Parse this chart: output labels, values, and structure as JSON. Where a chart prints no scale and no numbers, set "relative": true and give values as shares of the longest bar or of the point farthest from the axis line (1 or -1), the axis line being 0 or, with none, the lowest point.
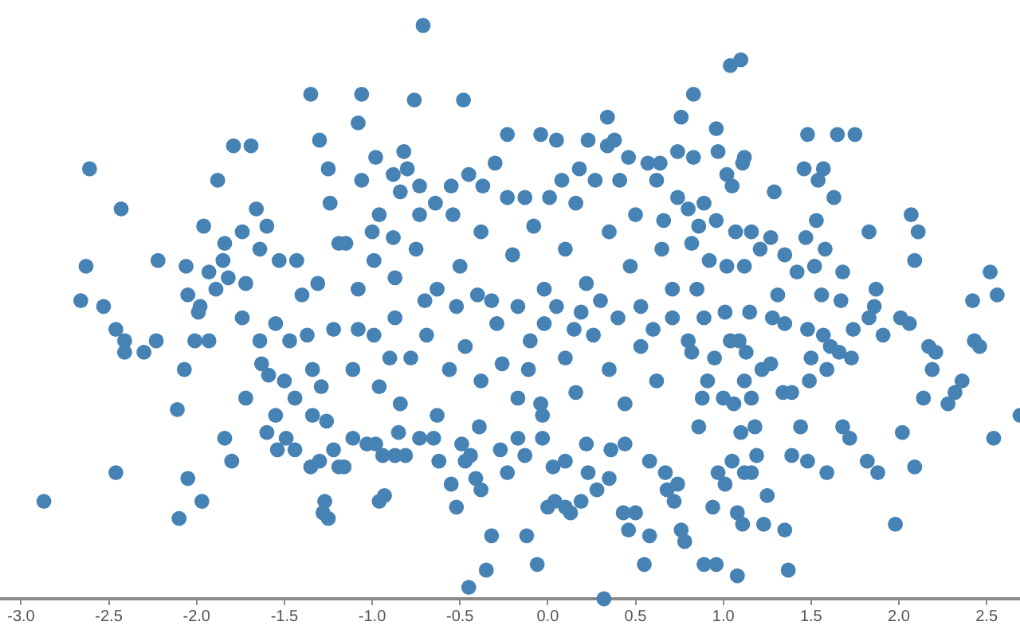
{
  "chart_data": {
    "type": "scatter",
    "color": "#4682b4",
    "marker": "circle",
    "relative": true,
    "xlim": [
      -3.12,
      2.69
    ],
    "xticks": [
      {
        "value": -3,
        "label": "-3.0"
      },
      -2.5,
      {
        "value": -2,
        "label": "-2.0"
      },
      -1.5,
      {
        "value": -1,
        "label": "-1.0"
      },
      -0.5,
      {
        "value": 0,
        "label": "0.0"
      },
      0.5,
      {
        "value": 1,
        "label": "1.0"
      },
      1.5,
      {
        "value": 2,
        "label": "2.0"
      },
      2.5
    ],
    "x": [
      -1.35,
      -1.3,
      -1.25,
      -1.24,
      -2.61,
      -2.43,
      -1.79,
      -1.69,
      -1.88,
      -1.96,
      -1.74,
      -1.66,
      -1.6,
      -1.84,
      -1.64,
      -2.63,
      -2.66,
      -2.53,
      -2.22,
      -2.06,
      -1.93,
      -1.85,
      -1.82,
      -1.89,
      -2.05,
      -1.98,
      -1.72,
      -1.53,
      -1.43,
      -1.31,
      -1.4,
      -1.19,
      -2.46,
      -2.41,
      -2.41,
      -2.3,
      -2.23,
      -2.07,
      -2.01,
      -1.93,
      -1.99,
      -2.11,
      -2.46,
      -2.87,
      -2.05,
      -1.97,
      -2.1,
      -1.84,
      -1.8,
      -1.72,
      -1.63,
      -1.59,
      -1.55,
      -1.6,
      -1.54,
      -1.49,
      -1.44,
      -1.5,
      -1.64,
      -1.74,
      -1.55,
      -1.44,
      -1.34,
      -1.26,
      -1.35,
      -1.3,
      -1.22,
      -1.27,
      -1.28,
      -1.25,
      -1.19,
      -1.29,
      -1.34,
      -1.37,
      -1.22,
      -1.47,
      -0.71,
      -1.06,
      -0.76,
      -0.48,
      -1.08,
      -0.23,
      -0.04,
      0.05,
      0.23,
      0.34,
      0.38,
      0.34,
      0.76,
      0.74,
      -0.98,
      -0.82,
      -0.3,
      0.46,
      0.57,
      0.64,
      -1.06,
      -0.88,
      -0.8,
      -0.45,
      0.08,
      0.18,
      0.27,
      -0.55,
      -0.73,
      -0.84,
      -0.37,
      -0.13,
      0.41,
      0.62,
      -0.96,
      -1.0,
      -0.88,
      -1.15,
      -0.73,
      -0.64,
      -0.54,
      -0.23,
      0.01,
      0.16,
      0.5,
      0.66,
      0.74,
      1.04,
      1.1,
      0.83,
      0.96,
      1.48,
      1.65,
      1.75,
      0.83,
      0.97,
      1.12,
      1.11,
      1.02,
      1.05,
      1.29,
      1.46,
      1.57,
      1.54,
      1.63,
      1.53,
      1.47,
      1.58,
      1.83,
      2.07,
      2.11,
      2.09,
      2.52,
      2.42,
      2.56,
      0.8,
      0.89,
      0.86,
      0.96,
      1.07,
      1.16,
      1.27,
      1.21,
      1.35,
      1.42,
      1.52,
      1.68,
      1.87,
      0.92,
      1.02,
      1.12,
      0.82,
      1.31,
      1.56,
      1.67,
      2.69,
      2.54,
      2.43,
      2.46,
      2.36,
      2.32,
      2.28,
      2.17,
      2.21,
      2.19,
      2.14,
      2.01,
      2.06,
      1.91,
      2.02,
      2.09,
      1.98,
      1.88,
      1.82,
      1.72,
      1.68,
      1.59,
      1.48,
      1.39,
      1.44,
      1.37,
      1.35,
      1.23,
      1.25,
      1.08,
      0.96,
      0.89,
      0.94,
      1.08,
      1.11,
      0.78,
      1.01,
      0.97,
      1.05,
      1.16,
      1.12,
      1.19,
      1.1,
      1.18,
      1.34,
      1.39,
      1.49,
      1.28,
      1.35,
      1.48,
      1.57,
      1.61,
      1.74,
      1.86,
      1.83,
      1.5,
      1.59,
      1.66,
      1.73,
      1.22,
      1.27,
      1.12,
      1.16,
      1.06,
      1.0,
      0.88,
      0.86,
      0.91,
      0.95,
      1.04,
      1.09,
      1.13,
      0.82,
      0.89,
      1.01,
      1.15,
      -0.45,
      -0.35,
      -0.32,
      -0.12,
      -0.06,
      0.32,
      0.55,
      0.46,
      0.58,
      0.43,
      0.5,
      0.76,
      -0.52,
      -0.55,
      -0.38,
      -0.41,
      -0.23,
      -0.96,
      -0.93,
      0.0,
      0.04,
      0.1,
      0.13,
      0.19,
      0.28,
      0.23,
      0.35,
      0.03,
      0.1,
      -0.62,
      -0.47,
      -0.44,
      -0.94,
      -0.87,
      -0.81,
      -1.16,
      -1.11,
      -1.03,
      -0.98,
      -0.85,
      -0.73,
      -0.65,
      -0.49,
      -0.39,
      -0.27,
      -0.17,
      -0.13,
      -0.03,
      -0.03,
      -0.04,
      0.22,
      0.36,
      0.44,
      0.58,
      0.67,
      0.68,
      0.74,
      0.72,
      -1.08,
      -0.99,
      -0.87,
      -0.78,
      -0.69,
      -0.56,
      -0.47,
      -0.38,
      -0.29,
      -0.26,
      -0.17,
      -0.11,
      -0.02,
      0.1,
      0.16,
      0.26,
      0.35,
      0.44,
      0.53,
      0.62,
      0.71,
      -1.11,
      -0.96,
      -0.84,
      -0.63,
      -0.52,
      0.19,
      -0.99,
      -0.87,
      -0.75,
      -0.63,
      -0.5,
      -0.38,
      -0.32,
      -0.2,
      -0.08,
      -0.02,
      0.1,
      0.22,
      0.35,
      0.47,
      0.65,
      0.71,
      -1.08,
      -0.17,
      0.53,
      0.85,
      0.05,
      0.15,
      0.3,
      -0.1,
      0.4,
      -0.4,
      -0.7,
      -0.9,
      0.6,
      0.8
    ],
    "values": [
      0.88,
      0.8,
      0.75,
      0.69,
      0.75,
      0.68,
      0.79,
      0.79,
      0.73,
      0.65,
      0.64,
      0.68,
      0.65,
      0.62,
      0.61,
      0.58,
      0.52,
      0.51,
      0.59,
      0.58,
      0.57,
      0.59,
      0.56,
      0.54,
      0.53,
      0.51,
      0.55,
      0.59,
      0.59,
      0.55,
      0.53,
      0.62,
      0.47,
      0.45,
      0.43,
      0.43,
      0.45,
      0.4,
      0.45,
      0.45,
      0.5,
      0.33,
      0.22,
      0.17,
      0.21,
      0.17,
      0.14,
      0.28,
      0.24,
      0.35,
      0.41,
      0.39,
      0.32,
      0.29,
      0.26,
      0.28,
      0.26,
      0.38,
      0.45,
      0.49,
      0.48,
      0.35,
      0.32,
      0.31,
      0.23,
      0.24,
      0.26,
      0.17,
      0.15,
      0.14,
      0.23,
      0.37,
      0.4,
      0.46,
      0.47,
      0.45,
      1,
      0.88,
      0.87,
      0.87,
      0.83,
      0.81,
      0.81,
      0.8,
      0.8,
      0.84,
      0.8,
      0.79,
      0.84,
      0.78,
      0.77,
      0.78,
      0.76,
      0.77,
      0.76,
      0.76,
      0.73,
      0.74,
      0.75,
      0.74,
      0.73,
      0.75,
      0.73,
      0.72,
      0.72,
      0.71,
      0.72,
      0.7,
      0.73,
      0.73,
      0.67,
      0.64,
      0.63,
      0.62,
      0.67,
      0.69,
      0.67,
      0.7,
      0.7,
      0.69,
      0.67,
      0.66,
      0.7,
      0.93,
      0.94,
      0.88,
      0.82,
      0.81,
      0.81,
      0.81,
      0.77,
      0.78,
      0.77,
      0.76,
      0.74,
      0.72,
      0.71,
      0.75,
      0.75,
      0.73,
      0.7,
      0.66,
      0.63,
      0.61,
      0.64,
      0.67,
      0.64,
      0.59,
      0.57,
      0.52,
      0.53,
      0.68,
      0.69,
      0.65,
      0.66,
      0.64,
      0.64,
      0.63,
      0.61,
      0.6,
      0.57,
      0.58,
      0.57,
      0.54,
      0.59,
      0.58,
      0.58,
      0.62,
      0.53,
      0.53,
      0.52,
      0.32,
      0.28,
      0.45,
      0.44,
      0.38,
      0.36,
      0.34,
      0.44,
      0.43,
      0.4,
      0.35,
      0.49,
      0.48,
      0.46,
      0.29,
      0.23,
      0.13,
      0.22,
      0.24,
      0.28,
      0.3,
      0.22,
      0.24,
      0.25,
      0.3,
      0.05,
      0.12,
      0.13,
      0.18,
      0.04,
      0.06,
      0.06,
      0.16,
      0.15,
      0.13,
      0.1,
      0.2,
      0.22,
      0.24,
      0.22,
      0.22,
      0.25,
      0.29,
      0.3,
      0.36,
      0.36,
      0.38,
      0.49,
      0.48,
      0.47,
      0.46,
      0.44,
      0.47,
      0.51,
      0.49,
      0.42,
      0.4,
      0.43,
      0.42,
      0.4,
      0.41,
      0.38,
      0.35,
      0.34,
      0.35,
      0.35,
      0.3,
      0.38,
      0.42,
      0.45,
      0.45,
      0.43,
      0.43,
      0.49,
      0.5,
      0.5,
      0.02,
      0.05,
      0.11,
      0.11,
      0.06,
      0,
      0.06,
      0.12,
      0.11,
      0.15,
      0.15,
      0.12,
      0.16,
      0.2,
      0.19,
      0.21,
      0.22,
      0.17,
      0.18,
      0.16,
      0.17,
      0.16,
      0.15,
      0.17,
      0.19,
      0.22,
      0.21,
      0.23,
      0.24,
      0.24,
      0.24,
      0.25,
      0.25,
      0.25,
      0.25,
      0.23,
      0.28,
      0.27,
      0.27,
      0.29,
      0.28,
      0.28,
      0.27,
      0.3,
      0.26,
      0.28,
      0.25,
      0.28,
      0.32,
      0.34,
      0.27,
      0.26,
      0.27,
      0.24,
      0.22,
      0.19,
      0.2,
      0.17,
      0.47,
      0.46,
      0.49,
      0.42,
      0.46,
      0.4,
      0.44,
      0.38,
      0.48,
      0.41,
      0.35,
      0.4,
      0.48,
      0.42,
      0.36,
      0.46,
      0.4,
      0.34,
      0.44,
      0.38,
      0.49,
      0.4,
      0.37,
      0.34,
      0.32,
      0.51,
      0.5,
      0.59,
      0.56,
      0.61,
      0.54,
      0.58,
      0.64,
      0.52,
      0.6,
      0.65,
      0.54,
      0.61,
      0.55,
      0.64,
      0.58,
      0.61,
      0.54,
      0.54,
      0.51,
      0.51,
      0.54,
      0.51,
      0.47,
      0.52,
      0.45,
      0.49,
      0.53,
      0.52,
      0.42,
      0.47,
      0.45
    ]
  }
}
